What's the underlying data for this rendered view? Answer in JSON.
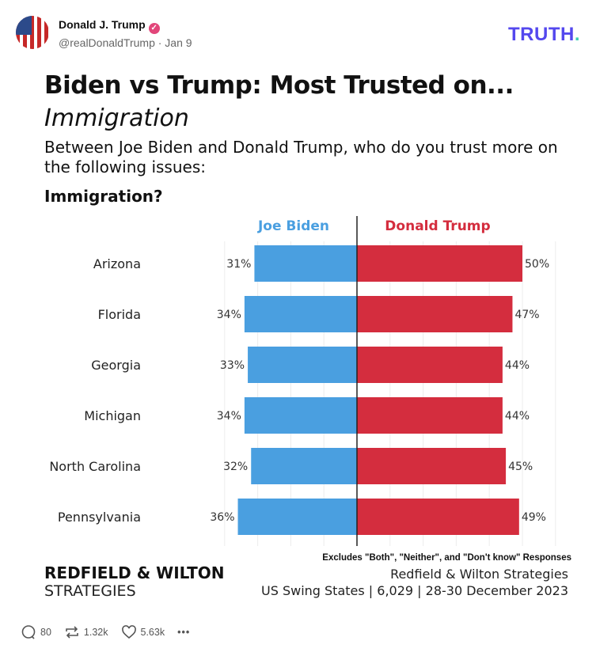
{
  "post": {
    "author_name": "Donald J. Trump",
    "handle": "@realDonaldTrump · Jan 9",
    "logo_text": "TRUTH",
    "logo_dot": ".",
    "brand_color": "#5448ee",
    "actions": {
      "replies": "80",
      "retruths": "1.32k",
      "likes": "5.63k"
    }
  },
  "graphic": {
    "title": "Biden vs Trump: Most Trusted on...",
    "subtitle": "Immigration",
    "question": "Between Joe Biden and Donald Trump, who do you trust more on the following issues:",
    "issue": "Immigration?",
    "note": "Excludes \"Both\", \"Neither\", and \"Don't know\" Responses",
    "source_line1": "Redfield & Wilton Strategies",
    "source_line2": "US Swing States | 6,029 | 28-30 December 2023",
    "brand_line1": "REDFIELD & WILTON",
    "brand_line2": "STRATEGIES"
  },
  "chart_data": {
    "type": "bar",
    "orientation": "diverging-horizontal",
    "categories": [
      "Arizona",
      "Florida",
      "Georgia",
      "Michigan",
      "North Carolina",
      "Pennsylvania"
    ],
    "series": [
      {
        "name": "Joe Biden",
        "color": "#4a9fe0",
        "values": [
          31,
          34,
          33,
          34,
          32,
          36
        ],
        "labels": [
          "31%",
          "34%",
          "33%",
          "34%",
          "32%",
          "36%"
        ]
      },
      {
        "name": "Donald Trump",
        "color": "#d42d3e",
        "values": [
          50,
          47,
          44,
          44,
          45,
          49
        ],
        "labels": [
          "50%",
          "47%",
          "44%",
          "44%",
          "45%",
          "49%"
        ]
      }
    ],
    "unit": "%",
    "grid": true
  }
}
